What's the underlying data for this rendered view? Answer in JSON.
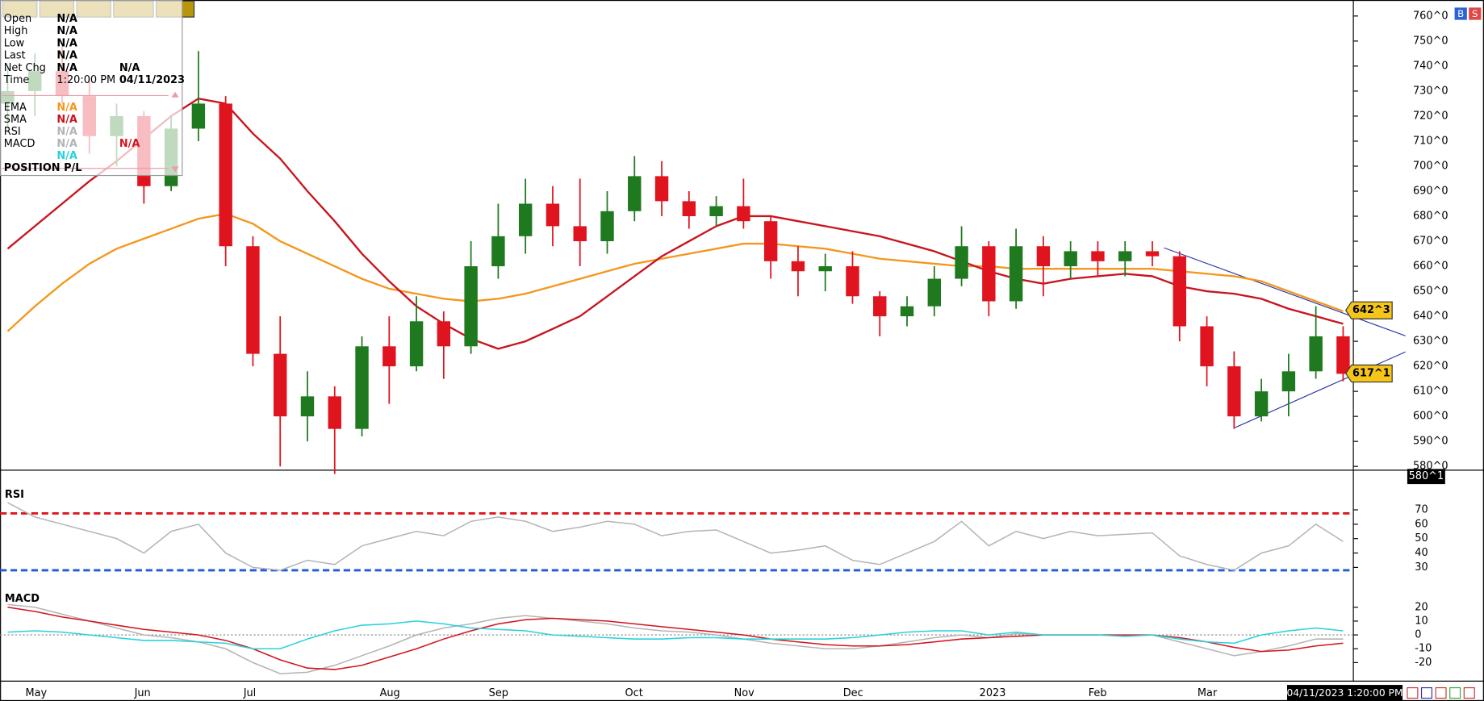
{
  "chart_data": [
    {
      "type": "candlestick",
      "categories": [
        null,
        "May",
        null,
        null,
        null,
        "Jun",
        null,
        null,
        null,
        "Jul",
        null,
        null,
        null,
        null,
        "Aug",
        null,
        null,
        null,
        "Sep",
        null,
        null,
        null,
        null,
        "Oct",
        null,
        null,
        null,
        "Nov",
        null,
        null,
        null,
        "Dec",
        null,
        null,
        null,
        null,
        "2023",
        null,
        null,
        null,
        "Feb",
        null,
        null,
        null,
        "Mar",
        null,
        null,
        null,
        null,
        null
      ],
      "open": [
        725,
        730,
        738,
        728,
        712,
        720,
        692,
        715,
        725,
        668,
        625,
        600,
        608,
        595,
        628,
        620,
        638,
        628,
        660,
        672,
        685,
        676,
        670,
        682,
        696,
        686,
        680,
        684,
        678,
        662,
        658,
        660,
        648,
        640,
        644,
        655,
        668,
        646,
        668,
        660,
        666,
        662,
        666,
        664,
        636,
        620,
        600,
        610,
        618,
        632
      ],
      "high": [
        740,
        745,
        748,
        735,
        725,
        722,
        720,
        746,
        728,
        672,
        640,
        618,
        612,
        632,
        640,
        648,
        642,
        670,
        685,
        695,
        692,
        695,
        690,
        704,
        702,
        690,
        688,
        695,
        680,
        668,
        665,
        666,
        650,
        648,
        660,
        676,
        670,
        675,
        672,
        670,
        670,
        670,
        670,
        666,
        640,
        626,
        615,
        625,
        644,
        636
      ],
      "low": [
        715,
        720,
        725,
        705,
        700,
        685,
        690,
        710,
        660,
        620,
        580,
        590,
        577,
        592,
        605,
        618,
        615,
        625,
        655,
        665,
        668,
        660,
        665,
        678,
        680,
        675,
        676,
        675,
        655,
        648,
        650,
        645,
        632,
        636,
        640,
        652,
        640,
        643,
        648,
        655,
        656,
        656,
        660,
        630,
        612,
        595,
        598,
        600,
        615,
        614
      ],
      "close": [
        730,
        738,
        728,
        712,
        720,
        692,
        715,
        725,
        668,
        625,
        600,
        608,
        595,
        628,
        620,
        638,
        628,
        660,
        672,
        685,
        676,
        670,
        682,
        696,
        686,
        680,
        684,
        678,
        662,
        658,
        660,
        648,
        640,
        644,
        655,
        668,
        646,
        668,
        660,
        666,
        662,
        666,
        664,
        636,
        620,
        600,
        610,
        618,
        632,
        617
      ],
      "up_color": "#1f7a1f",
      "down_color": "#e0141e",
      "series": [
        {
          "name": "EMA",
          "color": "#f5961e",
          "values": [
            634,
            644,
            653,
            661,
            667,
            671,
            675,
            679,
            681,
            677,
            670,
            665,
            660,
            655,
            651,
            649,
            647,
            646,
            647,
            649,
            652,
            655,
            658,
            661,
            663,
            665,
            667,
            669,
            669,
            668,
            667,
            665,
            663,
            662,
            661,
            660,
            660,
            659,
            659,
            659,
            659,
            659,
            659,
            658,
            657,
            656,
            654,
            650,
            646,
            642
          ]
        },
        {
          "name": "SMA",
          "color": "#c8141e",
          "values": [
            667,
            676,
            685,
            694,
            702,
            711,
            720,
            727,
            725,
            713,
            703,
            690,
            678,
            665,
            654,
            644,
            637,
            631,
            627,
            630,
            635,
            640,
            648,
            656,
            664,
            670,
            676,
            680,
            680,
            678,
            676,
            674,
            672,
            669,
            666,
            662,
            658,
            655,
            653,
            655,
            656,
            657,
            656,
            652,
            650,
            649,
            647,
            643,
            640,
            637
          ]
        }
      ],
      "ylim": [
        578.5,
        766.4
      ],
      "yticks": [
        {
          "value": 580,
          "label": "580^0"
        },
        {
          "value": 590,
          "label": "590^0"
        },
        {
          "value": 600,
          "label": "600^0"
        },
        {
          "value": 610,
          "label": "610^0"
        },
        {
          "value": 620,
          "label": "620^0"
        },
        {
          "value": 630,
          "label": "630^0"
        },
        {
          "value": 640,
          "label": "640^0"
        },
        {
          "value": 650,
          "label": "650^0"
        },
        {
          "value": 660,
          "label": "660^0"
        },
        {
          "value": 670,
          "label": "670^0"
        },
        {
          "value": 680,
          "label": "680^0"
        },
        {
          "value": 690,
          "label": "690^0"
        },
        {
          "value": 700,
          "label": "700^0"
        },
        {
          "value": 710,
          "label": "710^0"
        },
        {
          "value": 720,
          "label": "720^0"
        },
        {
          "value": 730,
          "label": "730^0"
        },
        {
          "value": 740,
          "label": "740^0"
        },
        {
          "value": 750,
          "label": "750^0"
        },
        {
          "value": 760,
          "label": "760^0"
        }
      ],
      "price_labels": [
        {
          "value": 642.375,
          "label": "642^3",
          "style": "gold"
        },
        {
          "value": 617.125,
          "label": "617^1",
          "style": "gold"
        },
        {
          "value": 580.125,
          "label": "580^1",
          "style": "dark"
        }
      ]
    },
    {
      "type": "line",
      "title": "RSI",
      "series": [
        {
          "color": "#b4b4b4",
          "values": [
            75,
            65,
            60,
            55,
            50,
            40,
            55,
            60,
            40,
            30,
            28,
            35,
            32,
            45,
            50,
            55,
            52,
            62,
            65,
            62,
            55,
            58,
            62,
            60,
            52,
            55,
            56,
            48,
            40,
            42,
            45,
            35,
            32,
            40,
            48,
            62,
            45,
            55,
            50,
            55,
            52,
            53,
            54,
            38,
            32,
            28,
            40,
            45,
            60,
            48
          ]
        }
      ],
      "levels": [
        {
          "value": 67.5,
          "color": "#e0141e"
        },
        {
          "value": 28,
          "color": "#1e5adc"
        }
      ],
      "ylim": [
        20,
        89
      ],
      "yticks": [
        30,
        40,
        50,
        60,
        70
      ]
    },
    {
      "type": "line",
      "title": "MACD",
      "series": [
        {
          "color": "#b4b4b4",
          "values": [
            22,
            20,
            15,
            10,
            5,
            0,
            -2,
            -5,
            -10,
            -20,
            -28,
            -27,
            -22,
            -15,
            -8,
            0,
            5,
            8,
            12,
            14,
            12,
            10,
            8,
            5,
            3,
            2,
            0,
            -3,
            -6,
            -8,
            -10,
            -10,
            -8,
            -5,
            -2,
            0,
            -2,
            1,
            0,
            0,
            0,
            -1,
            0,
            -5,
            -10,
            -15,
            -12,
            -8,
            -3,
            -3
          ]
        },
        {
          "color": "#d2141e",
          "values": [
            20,
            17,
            13,
            10,
            7,
            4,
            2,
            0,
            -4,
            -10,
            -18,
            -24,
            -25,
            -22,
            -16,
            -10,
            -3,
            3,
            8,
            11,
            12,
            11,
            10,
            8,
            6,
            4,
            2,
            0,
            -3,
            -5,
            -7,
            -8,
            -8,
            -7,
            -5,
            -3,
            -2,
            -1,
            0,
            0,
            0,
            0,
            0,
            -2,
            -5,
            -9,
            -12,
            -11,
            -8,
            -6
          ]
        },
        {
          "color": "#28d2dc",
          "values": [
            2,
            3,
            2,
            0,
            -2,
            -4,
            -4,
            -5,
            -6,
            -10,
            -10,
            -3,
            3,
            7,
            8,
            10,
            8,
            5,
            4,
            3,
            0,
            -1,
            -2,
            -3,
            -3,
            -2,
            -2,
            -3,
            -3,
            -3,
            -3,
            -2,
            0,
            2,
            3,
            3,
            0,
            2,
            0,
            0,
            0,
            -1,
            0,
            -3,
            -5,
            -6,
            0,
            3,
            5,
            3
          ]
        }
      ],
      "zero_line": 0,
      "ylim": [
        -30,
        35
      ],
      "yticks": [
        -20,
        -10,
        0,
        10,
        20
      ]
    }
  ],
  "info_panel": {
    "rows": [
      {
        "label": "Open",
        "values": [
          "N/A"
        ]
      },
      {
        "label": "High",
        "values": [
          "N/A"
        ]
      },
      {
        "label": "Low",
        "values": [
          "N/A"
        ]
      },
      {
        "label": "Last",
        "values": [
          "N/A"
        ]
      },
      {
        "label": "Net Chg",
        "values": [
          "N/A",
          "N/A"
        ]
      },
      {
        "label": "Time",
        "values": [
          "1:20:00 PM",
          "04/11/2023"
        ]
      }
    ],
    "indicator_values": [
      [
        "N/A"
      ],
      [
        "N/A"
      ],
      [
        "N/A"
      ],
      [
        "N/A",
        "N/A"
      ],
      [
        "N/A"
      ]
    ],
    "position_label": "POSITION P/L"
  },
  "timestamp": "04/11/2023 1:20:00 PM",
  "buttons": [
    "B",
    "S"
  ]
}
